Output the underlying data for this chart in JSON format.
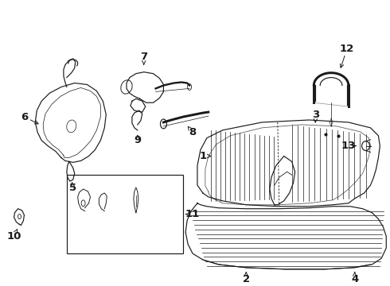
{
  "bg_color": "#ffffff",
  "line_color": "#1a1a1a",
  "fig_width": 4.9,
  "fig_height": 3.6,
  "dpi": 100,
  "label_fontsize": 9,
  "lw": 0.85
}
